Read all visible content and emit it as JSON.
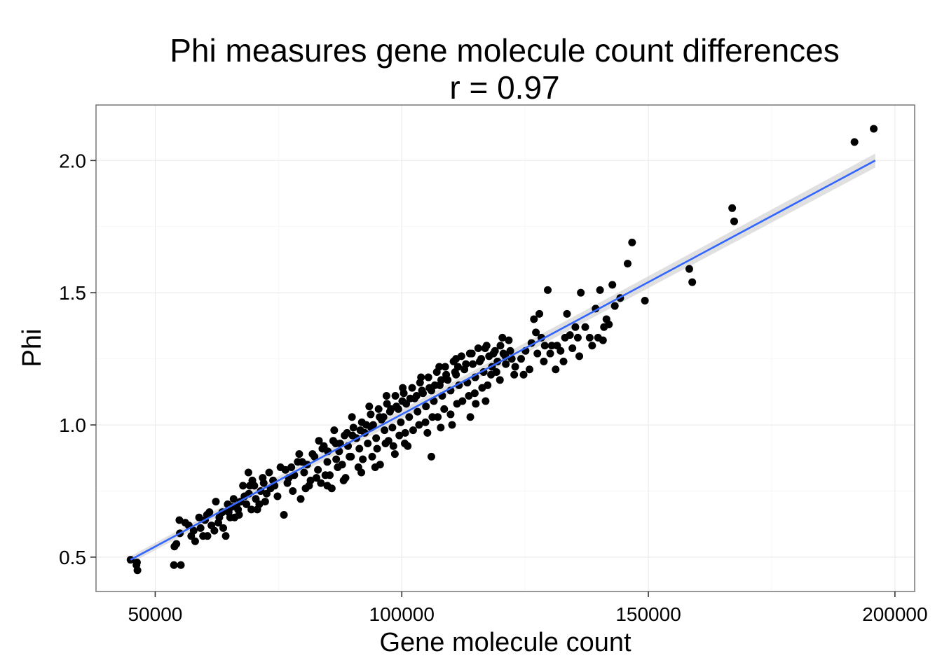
{
  "chart_data": {
    "type": "scatter",
    "title": "Phi measures gene molecule count differences",
    "subtitle": "r = 0.97",
    "xlabel": "Gene molecule count",
    "ylabel": "Phi",
    "xlim": [
      38000,
      204000
    ],
    "ylim": [
      0.37,
      2.21
    ],
    "x_ticks": [
      50000,
      100000,
      150000,
      200000
    ],
    "y_ticks": [
      0.5,
      1.0,
      1.5,
      2.0
    ],
    "x_tick_labels": [
      "50000",
      "100000",
      "150000",
      "200000"
    ],
    "y_tick_labels": [
      "0.5",
      "1.0",
      "1.5",
      "2.0"
    ],
    "grid": true,
    "point_color": "#000000",
    "fit_line": {
      "from": [
        45000,
        0.49
      ],
      "to": [
        196000,
        2.0
      ],
      "color": "#3366ff",
      "ribbon_color": "#cccccc"
    },
    "points": [
      [
        45000,
        0.49
      ],
      [
        46200,
        0.47
      ],
      [
        46400,
        0.45
      ],
      [
        46300,
        0.48
      ],
      [
        53800,
        0.47
      ],
      [
        55200,
        0.47
      ],
      [
        54300,
        0.55
      ],
      [
        53900,
        0.54
      ],
      [
        55000,
        0.59
      ],
      [
        54900,
        0.64
      ],
      [
        56100,
        0.63
      ],
      [
        57800,
        0.6
      ],
      [
        58100,
        0.56
      ],
      [
        58900,
        0.65
      ],
      [
        60500,
        0.66
      ],
      [
        61000,
        0.67
      ],
      [
        61400,
        0.62
      ],
      [
        62800,
        0.63
      ],
      [
        63800,
        0.61
      ],
      [
        64300,
        0.58
      ],
      [
        64700,
        0.7
      ],
      [
        65500,
        0.69
      ],
      [
        67000,
        0.66
      ],
      [
        68100,
        0.73
      ],
      [
        69200,
        0.77
      ],
      [
        70400,
        0.72
      ],
      [
        70700,
        0.68
      ],
      [
        71400,
        0.75
      ],
      [
        72600,
        0.74
      ],
      [
        73900,
        0.79
      ],
      [
        75400,
        0.84
      ],
      [
        76100,
        0.66
      ],
      [
        66500,
        0.69
      ],
      [
        66100,
        0.65
      ],
      [
        67800,
        0.77
      ],
      [
        68900,
        0.82
      ],
      [
        69700,
        0.79
      ],
      [
        71800,
        0.8
      ],
      [
        72300,
        0.71
      ],
      [
        73100,
        0.82
      ],
      [
        74800,
        0.73
      ],
      [
        76800,
        0.78
      ],
      [
        77600,
        0.84
      ],
      [
        78900,
        0.86
      ],
      [
        79500,
        0.72
      ],
      [
        80200,
        0.82
      ],
      [
        80800,
        0.85
      ],
      [
        81500,
        0.79
      ],
      [
        82300,
        0.88
      ],
      [
        83000,
        0.83
      ],
      [
        83600,
        0.78
      ],
      [
        84200,
        0.92
      ],
      [
        84900,
        0.86
      ],
      [
        85400,
        0.81
      ],
      [
        86100,
        0.94
      ],
      [
        86700,
        0.87
      ],
      [
        87300,
        0.9
      ],
      [
        87900,
        0.85
      ],
      [
        88400,
        0.96
      ],
      [
        89100,
        0.92
      ],
      [
        89700,
        0.88
      ],
      [
        90200,
        0.99
      ],
      [
        90800,
        0.95
      ],
      [
        91400,
        0.91
      ],
      [
        91900,
        1.01
      ],
      [
        92500,
        0.97
      ],
      [
        93100,
        0.93
      ],
      [
        93700,
        1.04
      ],
      [
        94200,
        1.0
      ],
      [
        94800,
        0.95
      ],
      [
        95300,
        1.06
      ],
      [
        95900,
        1.02
      ],
      [
        96500,
        0.98
      ],
      [
        97000,
        1.08
      ],
      [
        97600,
        1.05
      ],
      [
        98100,
        0.99
      ],
      [
        98700,
        1.11
      ],
      [
        99300,
        1.06
      ],
      [
        99800,
        1.01
      ],
      [
        100400,
        1.12
      ],
      [
        100900,
        1.08
      ],
      [
        101500,
        1.03
      ],
      [
        102100,
        1.14
      ],
      [
        102600,
        1.1
      ],
      [
        103200,
        1.05
      ],
      [
        103700,
        1.16
      ],
      [
        104300,
        1.12
      ],
      [
        104900,
        1.07
      ],
      [
        105400,
        1.18
      ],
      [
        106000,
        1.13
      ],
      [
        106500,
        1.09
      ],
      [
        107100,
        1.2
      ],
      [
        107700,
        1.15
      ],
      [
        108200,
        1.11
      ],
      [
        108800,
        1.22
      ],
      [
        109300,
        1.17
      ],
      [
        109900,
        1.13
      ],
      [
        110500,
        1.24
      ],
      [
        111000,
        1.19
      ],
      [
        111600,
        1.15
      ],
      [
        112100,
        1.26
      ],
      [
        112700,
        1.21
      ],
      [
        113300,
        1.16
      ],
      [
        113800,
        1.27
      ],
      [
        114400,
        1.23
      ],
      [
        114900,
        1.18
      ],
      [
        115500,
        1.29
      ],
      [
        116100,
        1.25
      ],
      [
        116600,
        1.2
      ],
      [
        117200,
        1.3
      ],
      [
        117700,
        1.26
      ],
      [
        118300,
        1.22
      ],
      [
        118900,
        1.28
      ],
      [
        119400,
        1.24
      ],
      [
        120000,
        1.3
      ],
      [
        120600,
        1.27
      ],
      [
        121100,
        1.23
      ],
      [
        121700,
        1.32
      ],
      [
        122300,
        1.25
      ],
      [
        122800,
        1.19
      ],
      [
        80500,
        0.76
      ],
      [
        82700,
        0.8
      ],
      [
        85800,
        0.76
      ],
      [
        88600,
        0.8
      ],
      [
        91200,
        0.84
      ],
      [
        94000,
        0.88
      ],
      [
        96700,
        0.93
      ],
      [
        99500,
        0.96
      ],
      [
        102300,
        0.98
      ],
      [
        104800,
        1.01
      ],
      [
        107300,
        1.03
      ],
      [
        109900,
        1.04
      ],
      [
        112300,
        1.09
      ],
      [
        114800,
        1.12
      ],
      [
        117400,
        1.15
      ],
      [
        119900,
        1.17
      ],
      [
        76400,
        0.83
      ],
      [
        78200,
        0.81
      ],
      [
        79800,
        0.86
      ],
      [
        81900,
        0.89
      ],
      [
        83900,
        0.91
      ],
      [
        86600,
        0.93
      ],
      [
        88900,
        0.97
      ],
      [
        91600,
        0.98
      ],
      [
        93800,
        0.99
      ],
      [
        96300,
        1.03
      ],
      [
        98900,
        1.07
      ],
      [
        101700,
        1.1
      ],
      [
        104100,
        1.13
      ],
      [
        106700,
        1.15
      ],
      [
        109000,
        1.19
      ],
      [
        111400,
        1.22
      ],
      [
        85000,
        0.9
      ],
      [
        87500,
        0.93
      ],
      [
        90000,
        0.96
      ],
      [
        92800,
        1.0
      ],
      [
        95500,
        1.03
      ],
      [
        97800,
        1.06
      ],
      [
        100100,
        1.09
      ],
      [
        103000,
        1.11
      ],
      [
        105600,
        1.14
      ],
      [
        108000,
        1.17
      ],
      [
        110800,
        1.2
      ],
      [
        113000,
        1.23
      ],
      [
        115800,
        1.24
      ],
      [
        118600,
        1.27
      ],
      [
        74200,
        0.77
      ],
      [
        77100,
        0.8
      ],
      [
        62300,
        0.71
      ],
      [
        63600,
        0.67
      ],
      [
        65900,
        0.72
      ],
      [
        67300,
        0.71
      ],
      [
        69000,
        0.74
      ],
      [
        70100,
        0.77
      ],
      [
        72000,
        0.78
      ],
      [
        73400,
        0.76
      ],
      [
        60100,
        0.64
      ],
      [
        59200,
        0.61
      ],
      [
        57300,
        0.58
      ],
      [
        56800,
        0.62
      ],
      [
        59700,
        0.58
      ],
      [
        63000,
        0.65
      ],
      [
        64900,
        0.67
      ],
      [
        68500,
        0.7
      ],
      [
        77900,
        0.75
      ],
      [
        81200,
        0.77
      ],
      [
        84500,
        0.81
      ],
      [
        87000,
        0.84
      ],
      [
        89400,
        0.88
      ],
      [
        92100,
        0.87
      ],
      [
        95000,
        0.91
      ],
      [
        97300,
        0.94
      ],
      [
        100700,
        0.97
      ],
      [
        103500,
        1.0
      ],
      [
        106200,
        1.03
      ],
      [
        108600,
        1.06
      ],
      [
        111200,
        1.08
      ],
      [
        113600,
        1.11
      ],
      [
        116300,
        1.14
      ],
      [
        118100,
        1.19
      ],
      [
        79200,
        0.89
      ],
      [
        83200,
        0.94
      ],
      [
        86300,
        0.98
      ],
      [
        89900,
        1.03
      ],
      [
        93400,
        1.07
      ],
      [
        96900,
        1.11
      ],
      [
        100200,
        1.14
      ],
      [
        103900,
        1.18
      ],
      [
        107600,
        1.22
      ],
      [
        111000,
        1.25
      ],
      [
        114200,
        1.27
      ],
      [
        116900,
        1.29
      ],
      [
        95600,
        0.85
      ],
      [
        106000,
        0.88
      ],
      [
        100600,
        0.93
      ],
      [
        98300,
        0.92
      ],
      [
        121000,
        1.26
      ],
      [
        123000,
        1.22
      ],
      [
        124200,
        1.25
      ],
      [
        125100,
        1.28
      ],
      [
        126300,
        1.31
      ],
      [
        127200,
        1.35
      ],
      [
        127900,
        1.42
      ],
      [
        128300,
        1.33
      ],
      [
        129600,
        1.51
      ],
      [
        130400,
        1.3
      ],
      [
        131500,
        1.3
      ],
      [
        132200,
        1.28
      ],
      [
        132800,
        1.24
      ],
      [
        133500,
        1.42
      ],
      [
        134100,
        1.34
      ],
      [
        134600,
        1.29
      ],
      [
        135200,
        1.37
      ],
      [
        135700,
        1.33
      ],
      [
        136300,
        1.5
      ],
      [
        137200,
        1.37
      ],
      [
        138100,
        1.33
      ],
      [
        138600,
        1.3
      ],
      [
        139300,
        1.44
      ],
      [
        140200,
        1.51
      ],
      [
        140800,
        1.32
      ],
      [
        141500,
        1.4
      ],
      [
        142000,
        1.38
      ],
      [
        142700,
        1.53
      ],
      [
        143200,
        1.45
      ],
      [
        144300,
        1.48
      ],
      [
        145800,
        1.61
      ],
      [
        146700,
        1.69
      ],
      [
        149300,
        1.47
      ],
      [
        158300,
        1.59
      ],
      [
        158900,
        1.54
      ],
      [
        167000,
        1.82
      ],
      [
        167400,
        1.77
      ],
      [
        191800,
        2.07
      ],
      [
        195700,
        2.12
      ],
      [
        124700,
        1.19
      ],
      [
        125900,
        1.21
      ],
      [
        127500,
        1.27
      ],
      [
        128800,
        1.24
      ],
      [
        130100,
        1.27
      ],
      [
        131200,
        1.21
      ],
      [
        133100,
        1.33
      ],
      [
        136000,
        1.26
      ],
      [
        139800,
        1.33
      ],
      [
        141000,
        1.37
      ],
      [
        126800,
        1.4
      ],
      [
        129000,
        1.3
      ],
      [
        122000,
        1.28
      ],
      [
        120400,
        1.33
      ],
      [
        119200,
        1.2
      ],
      [
        117000,
        1.09
      ],
      [
        115000,
        1.08
      ],
      [
        113900,
        1.03
      ],
      [
        110200,
        1.0
      ],
      [
        107900,
        0.99
      ],
      [
        105200,
        0.97
      ],
      [
        101200,
        0.92
      ],
      [
        98600,
        0.89
      ],
      [
        94600,
        0.84
      ],
      [
        91800,
        0.82
      ],
      [
        88200,
        0.79
      ],
      [
        84900,
        0.77
      ],
      [
        71100,
        0.7
      ],
      [
        69500,
        0.68
      ],
      [
        66800,
        0.68
      ],
      [
        65200,
        0.65
      ],
      [
        62000,
        0.6
      ],
      [
        60600,
        0.58
      ]
    ]
  }
}
